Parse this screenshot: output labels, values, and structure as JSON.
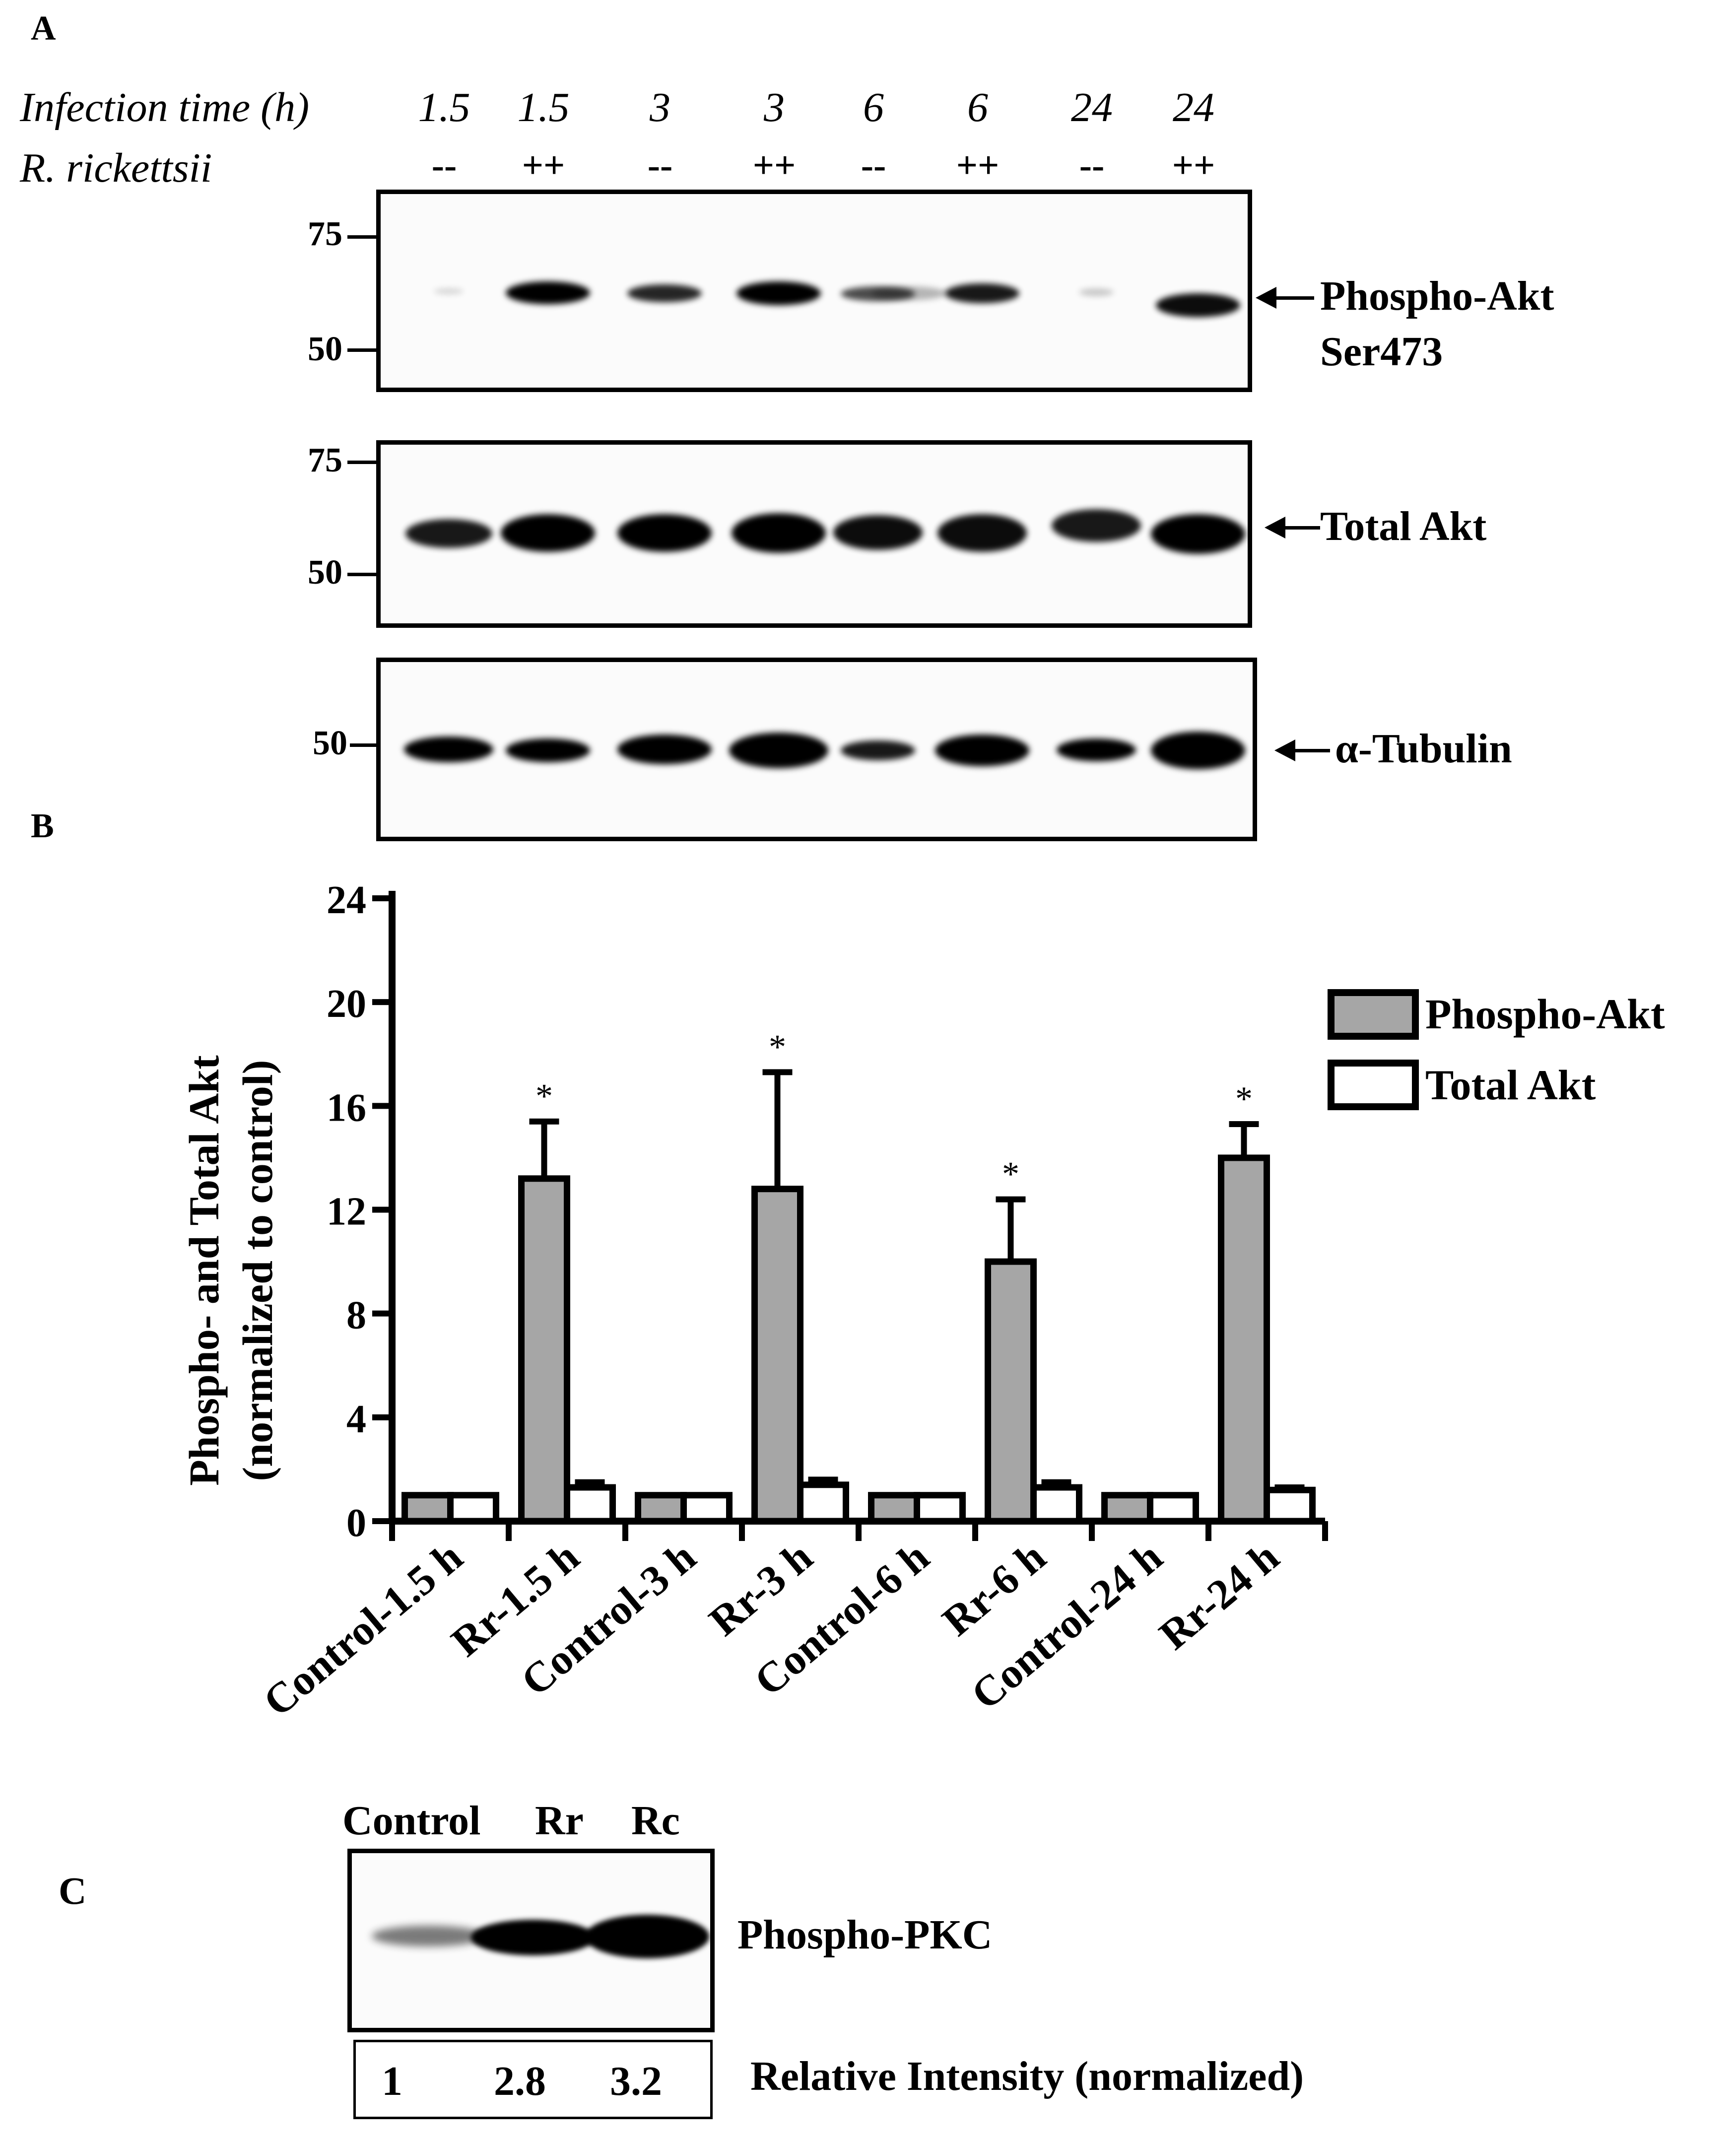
{
  "panel_a": {
    "letter": "A",
    "infection_time_label": "Infection time (h)",
    "rickettsii_label": "R. rickettsii",
    "lanes": [
      {
        "time": "1.5",
        "rr": "--"
      },
      {
        "time": "1.5",
        "rr": "++"
      },
      {
        "time": "3",
        "rr": "--"
      },
      {
        "time": "3",
        "rr": "++"
      },
      {
        "time": "6",
        "rr": "--"
      },
      {
        "time": "6",
        "rr": "++"
      },
      {
        "time": "24",
        "rr": "--"
      },
      {
        "time": "24",
        "rr": "++"
      }
    ],
    "blots": [
      {
        "label_line1": "Phospho-Akt",
        "label_line2": "Ser473",
        "mw_top": "75",
        "mw_bottom": "50"
      },
      {
        "label_line1": "Total Akt",
        "mw_top": "75",
        "mw_bottom": "50"
      },
      {
        "label_line1": "α-Tubulin",
        "mw": "50"
      }
    ]
  },
  "panel_b": {
    "letter": "B",
    "legend": {
      "series1": "Phospho-Akt",
      "series2": "Total Akt"
    },
    "ylabel_line1": "Phospho- and Total Akt",
    "ylabel_line2": "(normalized to control)"
  },
  "chart_data": {
    "type": "bar",
    "categories": [
      "Control-1.5 h",
      "Rr-1.5 h",
      "Control-3 h",
      "Rr-3 h",
      "Control-6 h",
      "Rr-6 h",
      "Control-24 h",
      "Rr-24 h"
    ],
    "series": [
      {
        "name": "Phospho-Akt",
        "values": [
          1,
          13.2,
          1,
          12.8,
          1,
          10,
          1,
          14
        ],
        "errors": [
          0,
          2.2,
          0,
          4.5,
          0,
          2.4,
          0,
          1.3
        ],
        "color": "#a6a6a6"
      },
      {
        "name": "Total Akt",
        "values": [
          1,
          1.3,
          1,
          1.4,
          1,
          1.3,
          1,
          1.2
        ],
        "errors": [
          0,
          0.2,
          0,
          0.2,
          0,
          0.2,
          0,
          0.1
        ],
        "color": "#ffffff"
      }
    ],
    "significance": [
      "",
      "*",
      "",
      "*",
      "",
      "*",
      "",
      "*"
    ],
    "yticks": [
      "0",
      "4",
      "8",
      "12",
      "16",
      "20",
      "24"
    ],
    "ylim": [
      0,
      24
    ],
    "legend_position": "top-right"
  },
  "panel_c": {
    "letter": "C",
    "lane_labels": [
      "Control",
      "Rr",
      "Rc"
    ],
    "blot_label": "Phospho-PKC",
    "intensities": [
      "1",
      "2.8",
      "3.2"
    ],
    "intensity_caption": "Relative Intensity (normalized)"
  }
}
